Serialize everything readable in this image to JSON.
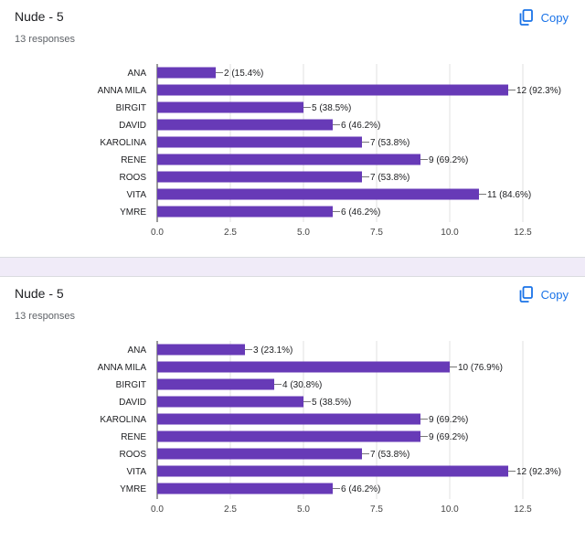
{
  "colors": {
    "bar": "#673ab7",
    "accent": "#1a73e8",
    "grid": "#e0e0e0",
    "divider": "#f0ebf8"
  },
  "cards": [
    {
      "title": "Nude - 5",
      "responses": "13 responses",
      "copy_label": "Copy",
      "copy_icon": "copy-icon"
    },
    {
      "title": "Nude - 5",
      "responses": "13 responses",
      "copy_label": "Copy",
      "copy_icon": "copy-icon"
    }
  ],
  "chart_data": [
    {
      "type": "bar",
      "orientation": "horizontal",
      "categories": [
        "ANA",
        "ANNA MILA",
        "BIRGIT",
        "DAVID",
        "KAROLINA",
        "RENE",
        "ROOS",
        "VITA",
        "YMRE"
      ],
      "values": [
        2,
        12,
        5,
        6,
        7,
        9,
        7,
        11,
        6
      ],
      "value_labels": [
        "2 (15.4%)",
        "12 (92.3%)",
        "5 (38.5%)",
        "6 (46.2%)",
        "7 (53.8%)",
        "9 (69.2%)",
        "7 (53.8%)",
        "11 (84.6%)",
        "6 (46.2%)"
      ],
      "xlim": [
        0,
        12.5
      ],
      "xticks": [
        "0.0",
        "2.5",
        "5.0",
        "7.5",
        "10.0",
        "12.5"
      ],
      "grid": true
    },
    {
      "type": "bar",
      "orientation": "horizontal",
      "categories": [
        "ANA",
        "ANNA MILA",
        "BIRGIT",
        "DAVID",
        "KAROLINA",
        "RENE",
        "ROOS",
        "VITA",
        "YMRE"
      ],
      "values": [
        3,
        10,
        4,
        5,
        9,
        9,
        7,
        12,
        6
      ],
      "value_labels": [
        "3 (23.1%)",
        "10 (76.9%)",
        "4 (30.8%)",
        "5 (38.5%)",
        "9 (69.2%)",
        "9 (69.2%)",
        "7 (53.8%)",
        "12 (92.3%)",
        "6 (46.2%)"
      ],
      "xlim": [
        0,
        12.5
      ],
      "xticks": [
        "0.0",
        "2.5",
        "5.0",
        "7.5",
        "10.0",
        "12.5"
      ],
      "grid": true
    }
  ]
}
